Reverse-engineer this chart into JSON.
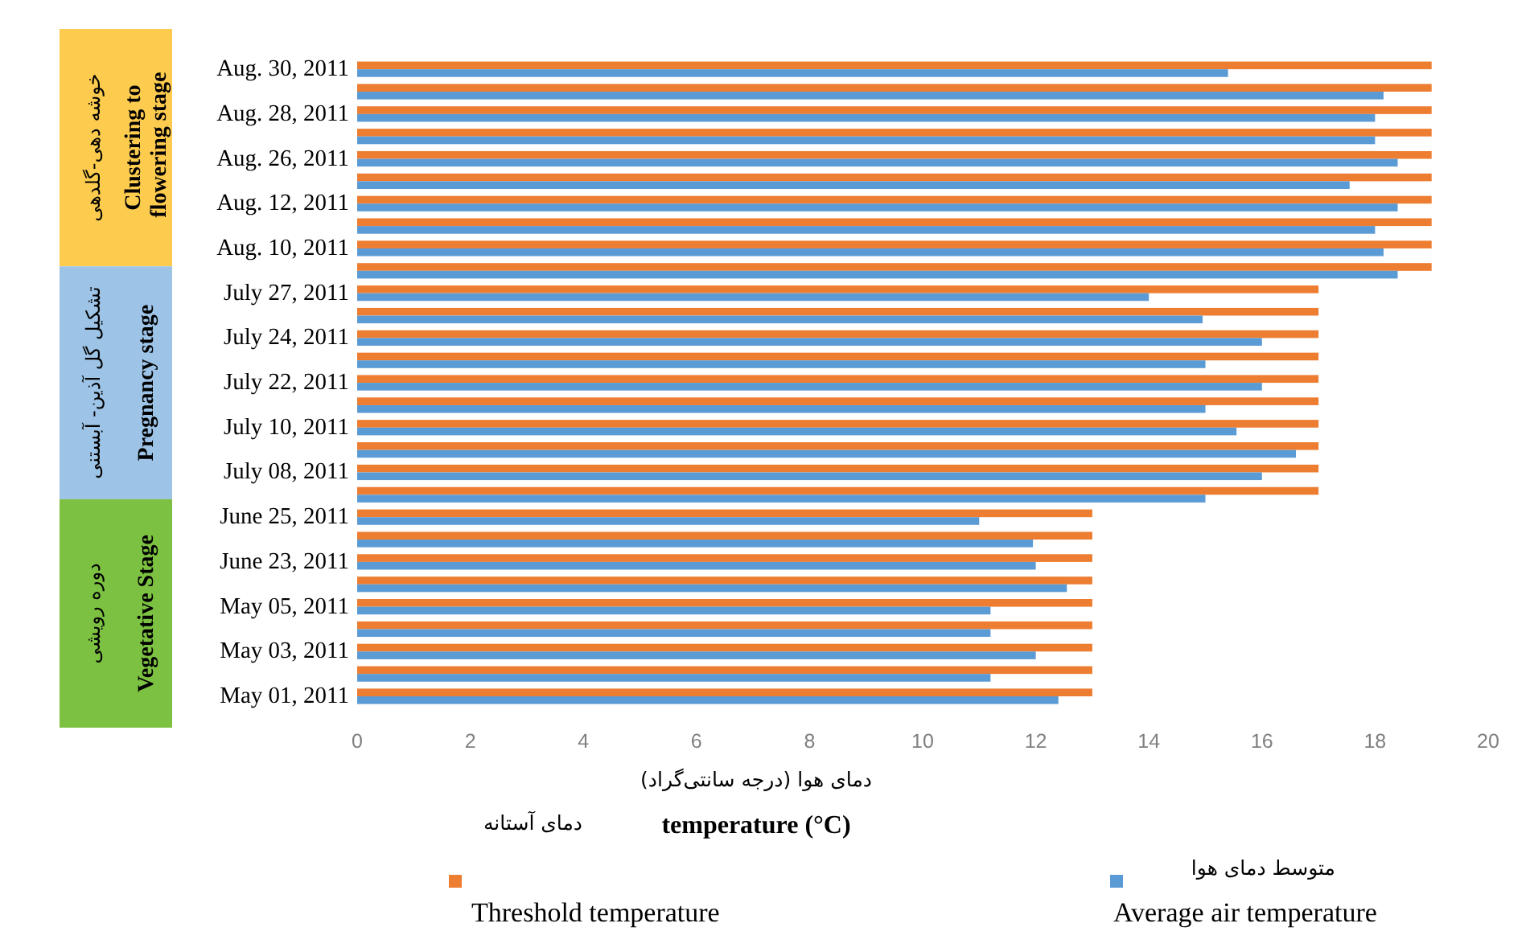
{
  "chart_data": {
    "type": "bar",
    "orientation": "horizontal",
    "xlabel": "temperature (°C)",
    "categories": [
      "Aug. 30, 2011",
      null,
      "Aug. 28, 2011",
      null,
      "Aug. 26, 2011",
      null,
      "Aug. 12, 2011",
      null,
      "Aug. 10, 2011",
      null,
      "July 27, 2011",
      null,
      "July 24, 2011",
      null,
      "July 22, 2011",
      null,
      "July 10, 2011",
      null,
      "July 08, 2011",
      null,
      "June 25, 2011",
      null,
      "June 23, 2011",
      null,
      "May 05, 2011",
      null,
      "May 03, 2011",
      null,
      "May 01, 2011"
    ],
    "series": [
      {
        "name": "Threshold temperature",
        "color": "#ed7d31",
        "values": [
          19,
          19,
          19,
          19,
          19,
          19,
          19,
          19,
          19,
          19,
          17,
          17,
          17,
          17,
          17,
          17,
          17,
          17,
          17,
          17,
          13,
          13,
          13,
          13,
          13,
          13,
          13,
          13,
          13
        ]
      },
      {
        "name": "Average air temperature",
        "color": "#5b9bd5",
        "values": [
          15.4,
          18.15,
          18.0,
          18.0,
          18.4,
          17.55,
          18.4,
          18.0,
          18.15,
          18.4,
          14.0,
          14.95,
          16.0,
          15.0,
          16.0,
          15.0,
          15.55,
          16.6,
          16.0,
          15.0,
          11.0,
          11.95,
          12.0,
          12.55,
          11.2,
          11.2,
          12.0,
          11.2,
          12.4
        ]
      }
    ],
    "xlim": [
      0,
      20
    ],
    "xticks": [
      0,
      2,
      4,
      6,
      8,
      10,
      12,
      14,
      16,
      18,
      20
    ],
    "legend": "bottom",
    "annotations": [
      "دمای هوا (درجه سانتی‌گراد)",
      "دمای آستانه",
      "متوسط دمای هوا",
      "خوشه دهی-گلدهی",
      "Clustering to flowering stage",
      "تشکیل گل آذین- آبستنی",
      "Pregnancy stage",
      "دوره رویشی",
      "Vegetative Stage"
    ]
  }
}
